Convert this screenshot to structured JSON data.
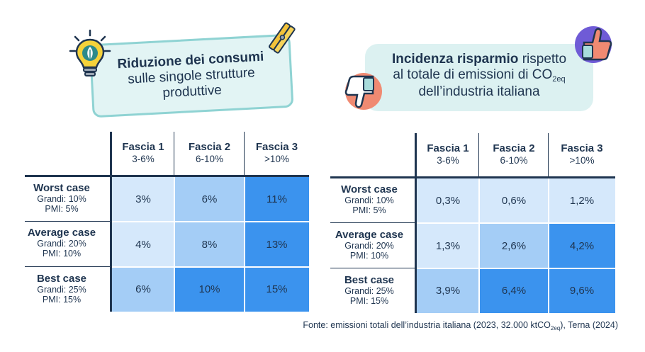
{
  "left_title": {
    "bold": "Riduzione dei consumi",
    "line2": "sulle singole strutture",
    "line3": "produttive"
  },
  "right_title": {
    "bold": "Incidenza risparmio",
    "rest1": " rispetto",
    "line2_text": "al totale di emissioni di CO",
    "line2_sub": "2eq",
    "line3": "dell’industria italiana"
  },
  "source": {
    "text_before": "Fonte: emissioni totali dell’industria italiana (2023, 32.000 ktCO",
    "sub": "2eq",
    "text_after": "), Terna (2024)"
  },
  "chart_data": [
    {
      "type": "table",
      "title": "Riduzione dei consumi sulle singole strutture produttive",
      "columns": [
        {
          "name": "Fascia 1",
          "range": "3-6%"
        },
        {
          "name": "Fascia 2",
          "range": "6-10%"
        },
        {
          "name": "Fascia 3",
          "range": ">10%"
        }
      ],
      "rows": [
        {
          "name": "Worst case",
          "grandi": "Grandi: 10%",
          "pmi": "PMI: 5%"
        },
        {
          "name": "Average case",
          "grandi": "Grandi: 20%",
          "pmi": "PMI: 10%"
        },
        {
          "name": "Best case",
          "grandi": "Grandi: 25%",
          "pmi": "PMI: 15%"
        }
      ],
      "values": [
        [
          "3%",
          "6%",
          "11%"
        ],
        [
          "4%",
          "8%",
          "13%"
        ],
        [
          "6%",
          "10%",
          "15%"
        ]
      ],
      "shade": [
        [
          1,
          2,
          3
        ],
        [
          1,
          2,
          3
        ],
        [
          2,
          3,
          3
        ]
      ]
    },
    {
      "type": "table",
      "title": "Incidenza risparmio rispetto al totale di emissioni di CO2eq dell’industria italiana",
      "columns": [
        {
          "name": "Fascia 1",
          "range": "3-6%"
        },
        {
          "name": "Fascia 2",
          "range": "6-10%"
        },
        {
          "name": "Fascia 3",
          "range": ">10%"
        }
      ],
      "rows": [
        {
          "name": "Worst case",
          "grandi": "Grandi: 10%",
          "pmi": "PMI: 5%"
        },
        {
          "name": "Average case",
          "grandi": "Grandi: 20%",
          "pmi": "PMI: 10%"
        },
        {
          "name": "Best case",
          "grandi": "Grandi: 25%",
          "pmi": "PMI: 15%"
        }
      ],
      "values": [
        [
          "0,3%",
          "0,6%",
          "1,2%"
        ],
        [
          "1,3%",
          "2,6%",
          "4,2%"
        ],
        [
          "3,9%",
          "6,4%",
          "9,6%"
        ]
      ],
      "shade": [
        [
          1,
          1,
          1
        ],
        [
          1,
          2,
          3
        ],
        [
          2,
          3,
          3
        ]
      ]
    }
  ],
  "colors": {
    "light": "#d5e8fb",
    "medium": "#a4cdf6",
    "dark": "#3b93ee",
    "text": "#1f3550",
    "teal": "#8fd3d3"
  }
}
